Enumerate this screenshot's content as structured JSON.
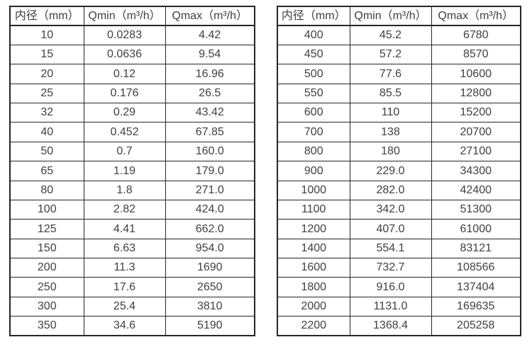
{
  "colors": {
    "background": "#ffffff",
    "text": "#404040",
    "border": "#262626"
  },
  "chart_data": [
    {
      "type": "table",
      "title": "",
      "columns": [
        "内径（mm）",
        "Qmin（m³/h）",
        "Qmax（m³/h）"
      ],
      "rows": [
        [
          "10",
          "0.0283",
          "4.42"
        ],
        [
          "15",
          "0.0636",
          "9.54"
        ],
        [
          "20",
          "0.12",
          "16.96"
        ],
        [
          "25",
          "0.176",
          "26.5"
        ],
        [
          "32",
          "0.29",
          "43.42"
        ],
        [
          "40",
          "0.452",
          "67.85"
        ],
        [
          "50",
          "0.7",
          "160.0"
        ],
        [
          "65",
          "1.19",
          "179.0"
        ],
        [
          "80",
          "1.8",
          "271.0"
        ],
        [
          "100",
          "2.82",
          "424.0"
        ],
        [
          "125",
          "4.41",
          "662.0"
        ],
        [
          "150",
          "6.63",
          "954.0"
        ],
        [
          "200",
          "11.3",
          "1690"
        ],
        [
          "250",
          "17.6",
          "2650"
        ],
        [
          "300",
          "25.4",
          "3810"
        ],
        [
          "350",
          "34.6",
          "5190"
        ]
      ]
    },
    {
      "type": "table",
      "title": "",
      "columns": [
        "内径（mm）",
        "Qmin（m³/h）",
        "Qmax（m³/h）"
      ],
      "rows": [
        [
          "400",
          "45.2",
          "6780"
        ],
        [
          "450",
          "57.2",
          "8570"
        ],
        [
          "500",
          "77.6",
          "10600"
        ],
        [
          "550",
          "85.5",
          "12800"
        ],
        [
          "600",
          "110",
          "15200"
        ],
        [
          "700",
          "138",
          "20700"
        ],
        [
          "800",
          "180",
          "27100"
        ],
        [
          "900",
          "229.0",
          "34300"
        ],
        [
          "1000",
          "282.0",
          "42400"
        ],
        [
          "1100",
          "342.0",
          "51300"
        ],
        [
          "1200",
          "407.0",
          "61000"
        ],
        [
          "1400",
          "554.1",
          "83121"
        ],
        [
          "1600",
          "732.7",
          "108566"
        ],
        [
          "1800",
          "916.0",
          "137404"
        ],
        [
          "2000",
          "1131.0",
          "169635"
        ],
        [
          "2200",
          "1368.4",
          "205258"
        ]
      ]
    }
  ]
}
